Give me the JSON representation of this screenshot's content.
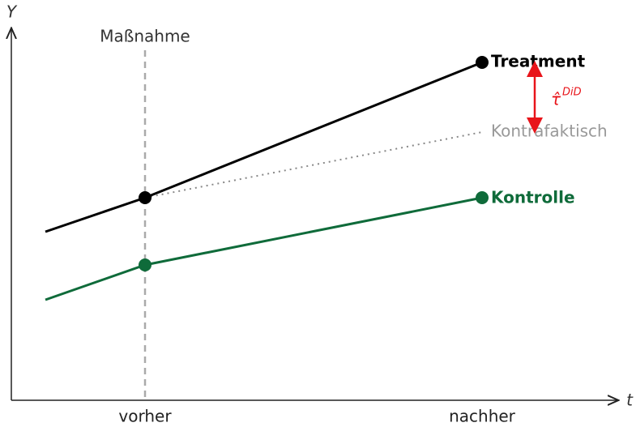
{
  "axes": {
    "y_label": "Y",
    "x_label": "t"
  },
  "intervention": {
    "label": "Maßnahme"
  },
  "time_points": [
    "vorher",
    "nachher"
  ],
  "lines": {
    "treatment": "Treatment",
    "counterfactual": "Kontrafaktisch",
    "control": "Kontrolle"
  },
  "effect": {
    "symbol": "τ̂",
    "superscript": "DiD"
  }
}
